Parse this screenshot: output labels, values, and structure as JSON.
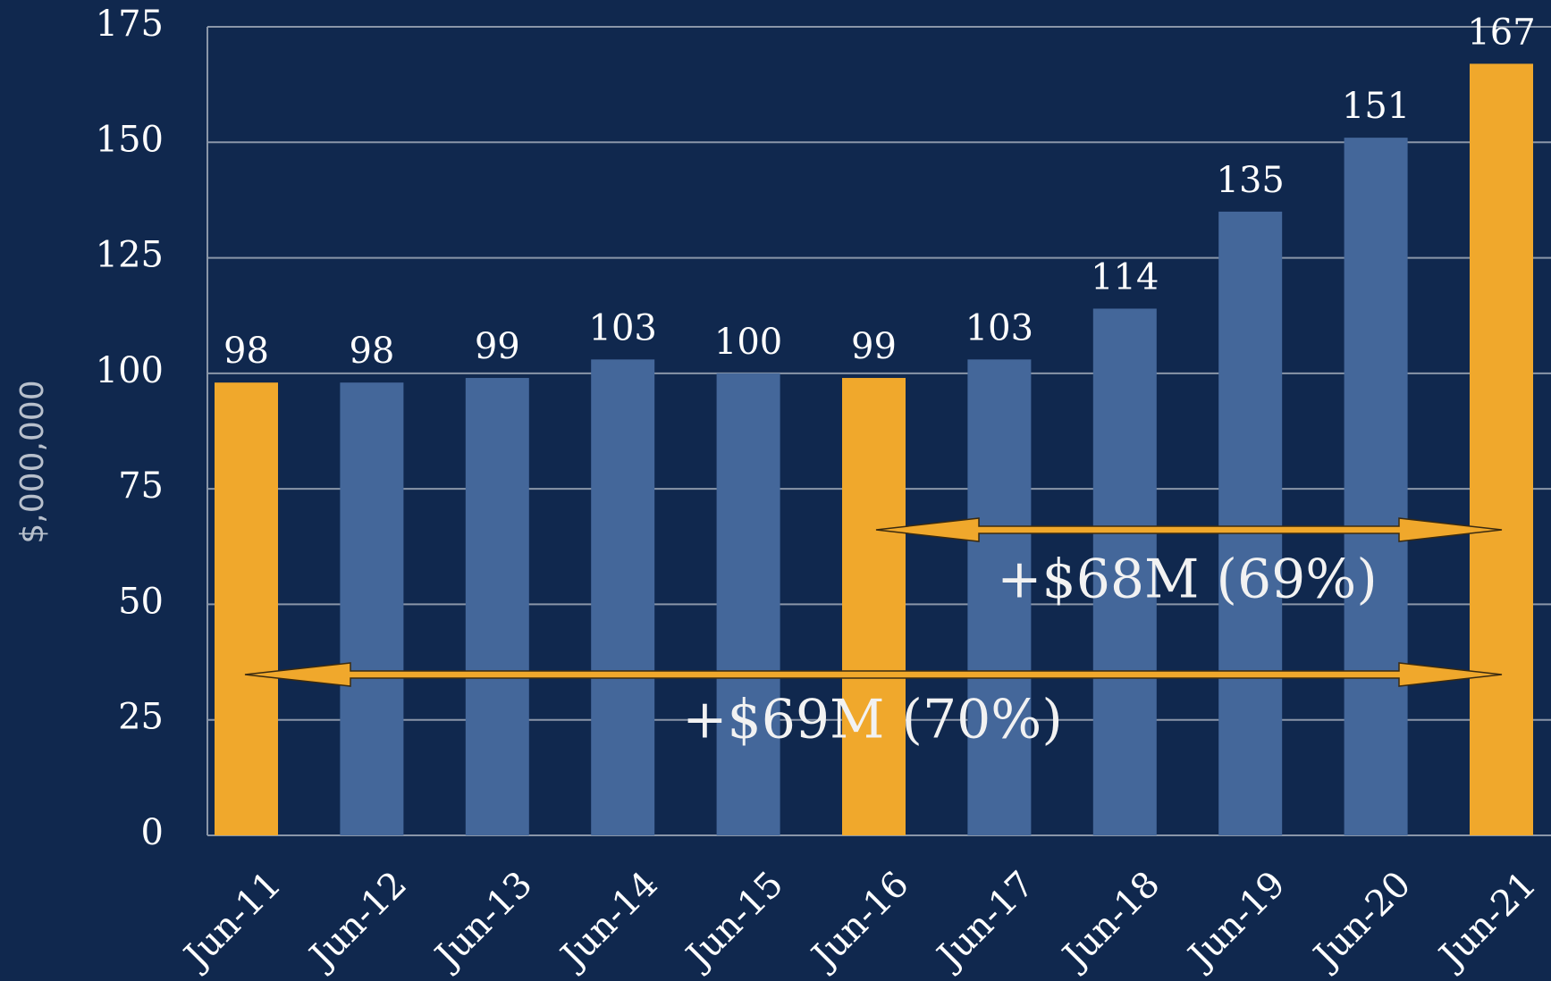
{
  "chart_data": {
    "type": "bar",
    "y_label": "$,000,000",
    "categories": [
      "Jun-11",
      "Jun-12",
      "Jun-13",
      "Jun-14",
      "Jun-15",
      "Jun-16",
      "Jun-17",
      "Jun-18",
      "Jun-19",
      "Jun-20",
      "Jun-21"
    ],
    "values": [
      98,
      98,
      99,
      103,
      100,
      99,
      103,
      114,
      135,
      151,
      167
    ],
    "colors": [
      "#f0a82c",
      "#44679a",
      "#44679a",
      "#44679a",
      "#44679a",
      "#f0a82c",
      "#44679a",
      "#44679a",
      "#44679a",
      "#44679a",
      "#f0a82c"
    ],
    "ylim": [
      0,
      175
    ],
    "yticks": [
      0,
      25,
      50,
      75,
      100,
      125,
      150,
      175
    ],
    "grid": true,
    "annotations": [
      "+$68M (69%)",
      "+$69M (70%)"
    ]
  }
}
